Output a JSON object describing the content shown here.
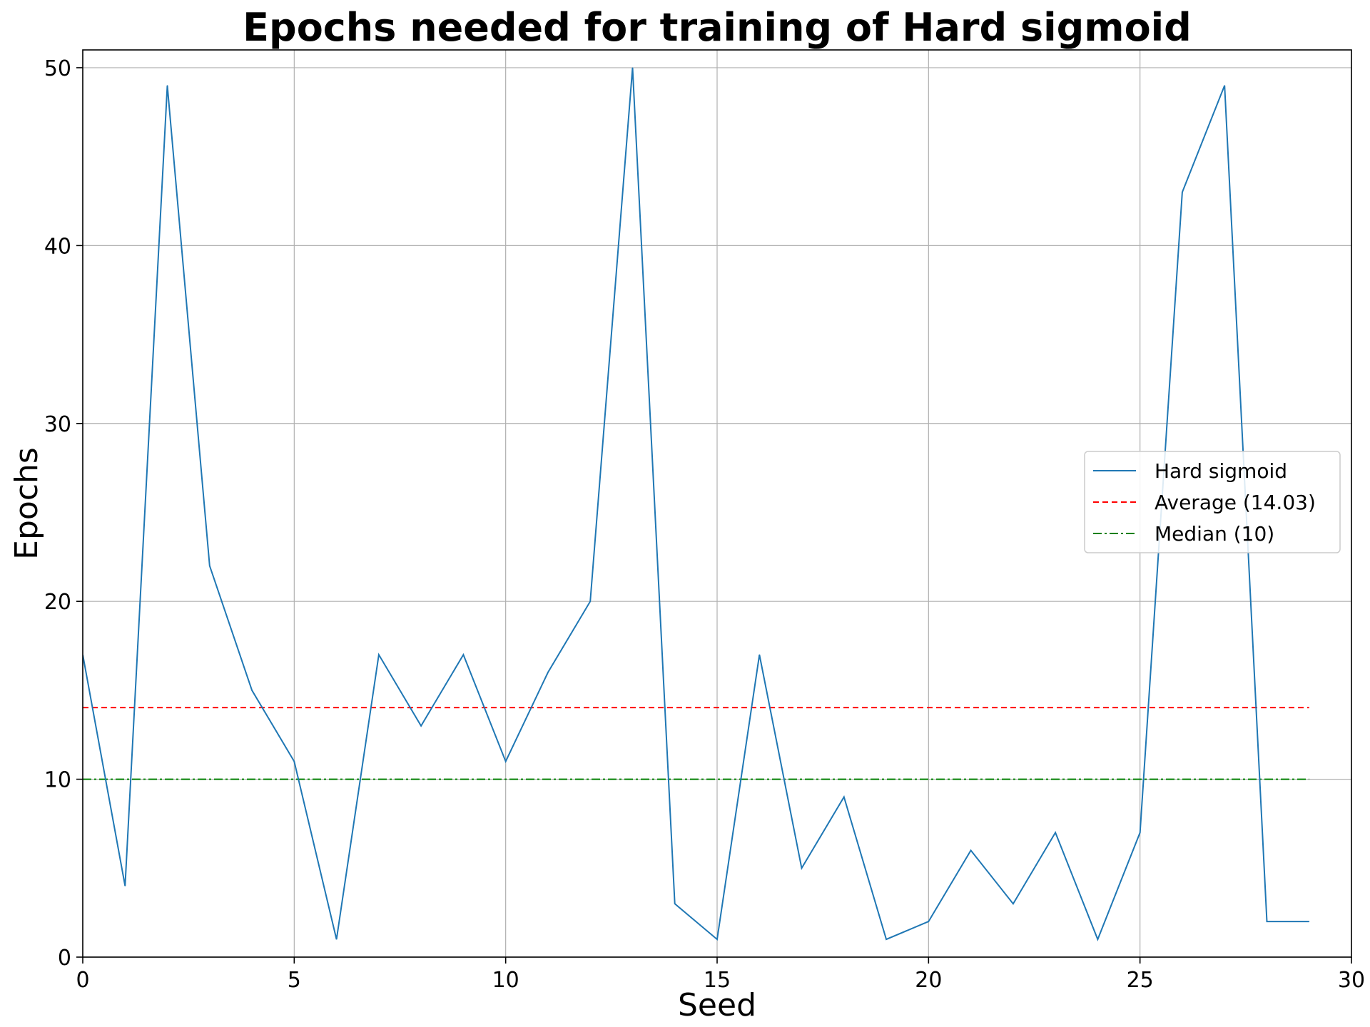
{
  "chart_data": {
    "type": "line",
    "title": "Epochs needed for training of Hard sigmoid",
    "xlabel": "Seed",
    "ylabel": "Epochs",
    "xlim": [
      0,
      30
    ],
    "ylim": [
      0,
      51
    ],
    "xticks": [
      0,
      5,
      10,
      15,
      20,
      25,
      30
    ],
    "yticks": [
      0,
      10,
      20,
      30,
      40,
      50
    ],
    "grid": true,
    "legend_position": "center-right",
    "x": [
      0,
      1,
      2,
      3,
      4,
      5,
      6,
      7,
      8,
      9,
      10,
      11,
      12,
      13,
      14,
      15,
      16,
      17,
      18,
      19,
      20,
      21,
      22,
      23,
      24,
      25,
      26,
      27,
      28,
      29
    ],
    "series": [
      {
        "name": "Hard sigmoid",
        "color": "#1f77b4",
        "style": "solid",
        "values": [
          17,
          4,
          49,
          22,
          15,
          11,
          1,
          17,
          13,
          17,
          11,
          16,
          20,
          50,
          3,
          1,
          17,
          5,
          9,
          1,
          2,
          6,
          3,
          7,
          1,
          7,
          43,
          49,
          2,
          2
        ]
      }
    ],
    "reference_lines": [
      {
        "name": "Average (14.03)",
        "value": 14.03,
        "color": "#ff0000",
        "style": "dashed",
        "x_range": [
          0,
          29
        ]
      },
      {
        "name": "Median (10)",
        "value": 10,
        "color": "#008000",
        "style": "dashdot",
        "x_range": [
          0,
          29
        ]
      }
    ]
  }
}
